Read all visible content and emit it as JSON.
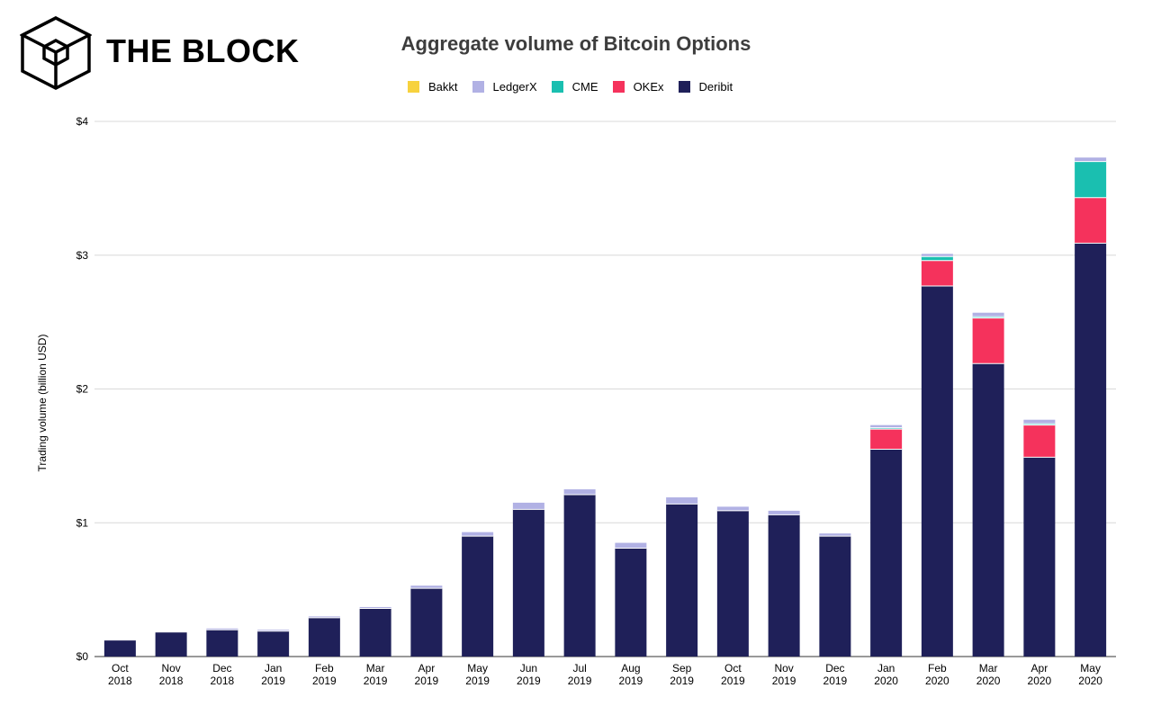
{
  "brand": {
    "name": "THE BLOCK",
    "logo_icon": "cube-logo-icon"
  },
  "chart_data": {
    "type": "bar",
    "stacked": true,
    "title": "Aggregate volume of Bitcoin Options",
    "ylabel": "Trading volume (billion USD)",
    "xlabel": "",
    "ylim": [
      0,
      4
    ],
    "yticks": [
      "$0",
      "$1",
      "$2",
      "$3",
      "$4"
    ],
    "grid": true,
    "legend_position": "top-center",
    "categories": [
      [
        "Oct",
        "2018"
      ],
      [
        "Nov",
        "2018"
      ],
      [
        "Dec",
        "2018"
      ],
      [
        "Jan",
        "2019"
      ],
      [
        "Feb",
        "2019"
      ],
      [
        "Mar",
        "2019"
      ],
      [
        "Apr",
        "2019"
      ],
      [
        "May",
        "2019"
      ],
      [
        "Jun",
        "2019"
      ],
      [
        "Jul",
        "2019"
      ],
      [
        "Aug",
        "2019"
      ],
      [
        "Sep",
        "2019"
      ],
      [
        "Oct",
        "2019"
      ],
      [
        "Nov",
        "2019"
      ],
      [
        "Dec",
        "2019"
      ],
      [
        "Jan",
        "2020"
      ],
      [
        "Feb",
        "2020"
      ],
      [
        "Mar",
        "2020"
      ],
      [
        "Apr",
        "2020"
      ],
      [
        "May",
        "2020"
      ]
    ],
    "series": [
      {
        "name": "Deribit",
        "color": "#1f2059",
        "values": [
          0.12,
          0.18,
          0.2,
          0.19,
          0.29,
          0.36,
          0.51,
          0.9,
          1.1,
          1.21,
          0.81,
          1.14,
          1.09,
          1.06,
          0.9,
          1.55,
          2.77,
          2.19,
          1.49,
          3.09
        ]
      },
      {
        "name": "OKEx",
        "color": "#f5325c",
        "values": [
          0,
          0,
          0,
          0,
          0,
          0,
          0,
          0,
          0,
          0,
          0,
          0,
          0,
          0,
          0,
          0.15,
          0.19,
          0.34,
          0.24,
          0.34
        ]
      },
      {
        "name": "CME",
        "color": "#1abfb0",
        "values": [
          0,
          0,
          0,
          0,
          0,
          0,
          0,
          0,
          0,
          0,
          0,
          0,
          0,
          0,
          0,
          0.01,
          0.03,
          0.01,
          0.01,
          0.27
        ]
      },
      {
        "name": "LedgerX",
        "color": "#b1b1e4",
        "values": [
          0,
          0,
          0.01,
          0.01,
          0.01,
          0.01,
          0.02,
          0.03,
          0.05,
          0.04,
          0.04,
          0.05,
          0.03,
          0.03,
          0.02,
          0.02,
          0.02,
          0.03,
          0.03,
          0.03
        ]
      },
      {
        "name": "Bakkt",
        "color": "#f7d23e",
        "values": [
          0,
          0,
          0,
          0,
          0,
          0,
          0,
          0,
          0,
          0,
          0,
          0,
          0,
          0,
          0,
          0,
          0,
          0,
          0,
          0
        ]
      }
    ],
    "legend_order": [
      "Bakkt",
      "LedgerX",
      "CME",
      "OKEx",
      "Deribit"
    ]
  }
}
